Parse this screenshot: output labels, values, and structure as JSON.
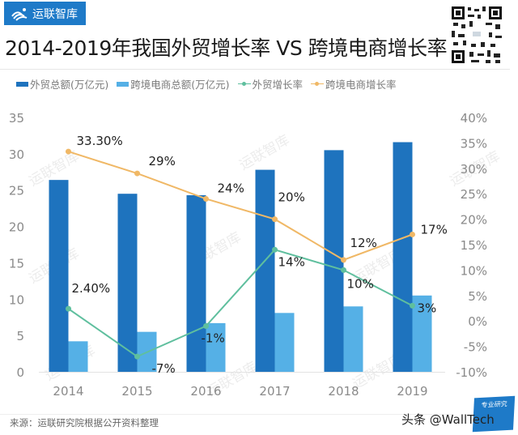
{
  "brand": {
    "name": "运联智库",
    "icon": "brand-wave-logo-icon"
  },
  "title": "2014-2019年我国外贸增长率 VS 跨境电商增长率",
  "qr_icon": "qr-code-icon",
  "legend": [
    {
      "label": "外贸总额(万亿元)",
      "type": "bar",
      "color": "#1e73be"
    },
    {
      "label": "跨境电商总额(万亿元)",
      "type": "bar",
      "color": "#55b0e6"
    },
    {
      "label": "外贸增长率",
      "type": "line",
      "color": "#5fbf9e"
    },
    {
      "label": "跨境电商增长率",
      "type": "line",
      "color": "#f0b866"
    }
  ],
  "source": "来源：运联研究院根据公开资料整理",
  "credit": "头条 @WallTech",
  "badge": {
    "line1": "专业研究",
    "line2": ""
  },
  "watermark": "运联智库",
  "chart_data": {
    "type": "bar",
    "title": "2014-2019年我国外贸增长率 VS 跨境电商增长率",
    "categories": [
      "2014",
      "2015",
      "2016",
      "2017",
      "2018",
      "2019"
    ],
    "series": [
      {
        "name": "外贸总额(万亿元)",
        "type": "bar",
        "axis": "left",
        "color": "#1e73be",
        "values": [
          26.4,
          24.5,
          24.3,
          27.8,
          30.5,
          31.6
        ]
      },
      {
        "name": "跨境电商总额(万亿元)",
        "type": "bar",
        "axis": "left",
        "color": "#55b0e6",
        "values": [
          4.2,
          5.5,
          6.7,
          8.1,
          9.0,
          10.5
        ]
      },
      {
        "name": "外贸增长率",
        "type": "line",
        "axis": "right",
        "color": "#5fbf9e",
        "values": [
          2.4,
          -7,
          -1,
          14,
          10,
          3
        ],
        "labels": [
          "2.40%",
          "-7%",
          "-1%",
          "14%",
          "10%",
          "3%"
        ]
      },
      {
        "name": "跨境电商增长率",
        "type": "line",
        "axis": "right",
        "color": "#f0b866",
        "values": [
          33.3,
          29,
          24,
          20,
          12,
          17
        ],
        "labels": [
          "33.30%",
          "29%",
          "24%",
          "20%",
          "12%",
          "17%"
        ]
      }
    ],
    "left_axis": {
      "range": [
        0,
        35
      ],
      "ticks": [
        "0",
        "5",
        "10",
        "15",
        "20",
        "25",
        "30",
        "35"
      ]
    },
    "right_axis": {
      "range": [
        -10,
        40
      ],
      "ticks": [
        "-10%",
        "-5%",
        "0%",
        "5%",
        "10%",
        "15%",
        "20%",
        "25%",
        "30%",
        "35%",
        "40%"
      ]
    },
    "xlabel": "",
    "ylabel": "",
    "grid": false,
    "legend_position": "top"
  }
}
